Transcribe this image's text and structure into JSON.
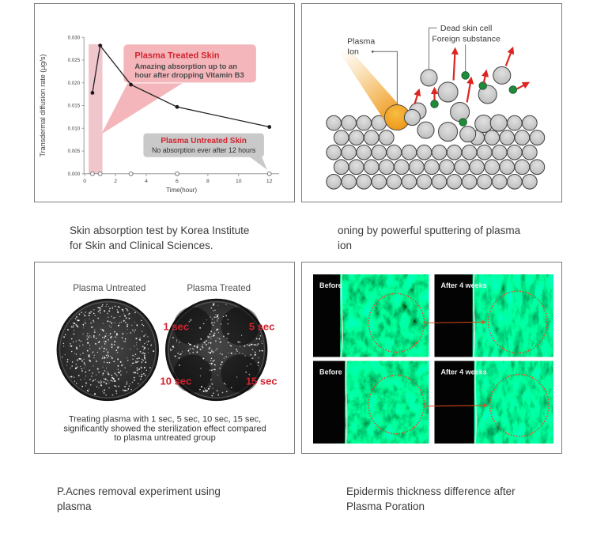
{
  "colors": {
    "accent_red": "#d2232e",
    "callout_pink": "#f4b6bb",
    "band_pink": "#f0c6cd",
    "callout_gray": "#c9c9c9",
    "line_black": "#222222",
    "cell_gray": "#c9c9c9",
    "cell_stroke": "#3f3f3f",
    "green": "#1e8a3a",
    "arrow_red": "#dd2420",
    "orange": "#ef9d1f",
    "label_red": "#d2232e",
    "dotted_orange": "#e8491f",
    "micro_edge": "#d8ecd8"
  },
  "chart_data": {
    "type": "line",
    "title": "",
    "xlabel": "Time(hour)",
    "ylabel": "Transdermal diffusion rate (μg/s)",
    "xlim": [
      0,
      12.7
    ],
    "ylim": [
      0,
      0.03
    ],
    "xticks": [
      0,
      2,
      4,
      6,
      8,
      10,
      12
    ],
    "yticks": [
      0,
      0.005,
      0.01,
      0.015,
      0.02,
      0.025,
      0.03
    ],
    "grid": false,
    "legend_position": "none",
    "series": [
      {
        "name": "Plasma Treated Skin",
        "marker": "filled",
        "x": [
          0.5,
          1,
          3,
          6,
          12
        ],
        "y": [
          0.0178,
          0.0282,
          0.0196,
          0.0147,
          0.0103
        ]
      },
      {
        "name": "Plasma Untreated Skin",
        "marker": "open",
        "x": [
          0.5,
          1,
          3,
          6,
          12
        ],
        "y": [
          0,
          0,
          0,
          0,
          0
        ]
      }
    ],
    "highlight_band": {
      "x": [
        0.25,
        1.15
      ],
      "y_top": 0.0285
    },
    "annotations": [
      {
        "id": "treated",
        "style": "pink",
        "title": "Plasma Treated Skin",
        "body_lines": [
          "Amazing absorption up to an",
          "hour after dropping Vitamin B3"
        ]
      },
      {
        "id": "untreated",
        "style": "gray",
        "title": "Plasma Untreated Skin",
        "body_lines": [
          "No absorption ever after 12 hours"
        ]
      }
    ]
  },
  "sputter": {
    "plasma_ion_label": [
      "Plasma",
      "Ion"
    ],
    "dead_skin_label": "Dead skin cell",
    "foreign_label": "Foreign substance"
  },
  "petri": {
    "untreated_title": "Plasma Untreated",
    "treated_title": "Plasma Treated",
    "time_labels": [
      "1 sec",
      "5 sec",
      "10 sec",
      "15 sec"
    ],
    "caption_lines": [
      "Treating plasma with 1 sec, 5 sec, 10 sec, 15 sec,",
      "significantly showed the sterilization effect compared",
      "to plasma untreated group"
    ]
  },
  "micro": {
    "tiles": [
      {
        "label": "Before"
      },
      {
        "label": "After 4 weeks"
      },
      {
        "label": "Before"
      },
      {
        "label": "After 4 weeks"
      }
    ]
  },
  "captions": [
    {
      "lines": [
        "Skin absorption test by Korea Institute",
        "for Skin and Clinical Sciences."
      ]
    },
    {
      "lines": [
        "oning by powerful sputtering of plasma",
        "ion"
      ]
    },
    {
      "lines": [
        "P.Acnes removal experiment using",
        "plasma"
      ]
    },
    {
      "lines": [
        "Epidermis thickness difference after",
        "Plasma Poration"
      ]
    }
  ]
}
